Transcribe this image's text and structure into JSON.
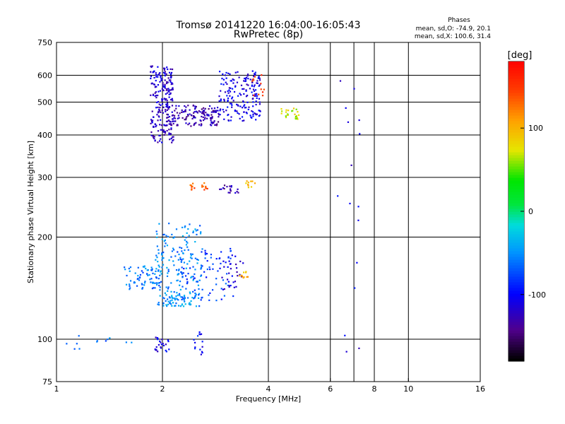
{
  "chart_data": {
    "type": "scatter",
    "title": "Tromsø 20141220 16:04:00-16:05:43",
    "subtitle": "RwPretec (8p)",
    "phase_stats": {
      "heading": "Phases",
      "line1": "mean, sd,O: -74.9, 20.1",
      "line2": "mean, sd,X: 100.6, 31.4"
    },
    "xlabel": "Frequency [MHz]",
    "ylabel": "Stationary phase Virtual Height [km]",
    "x_scale": "log",
    "y_scale": "log",
    "xlim": [
      1,
      16
    ],
    "ylim": [
      75,
      750
    ],
    "x_ticks": [
      1,
      2,
      4,
      6,
      8,
      10,
      16
    ],
    "y_ticks": [
      75,
      100,
      200,
      300,
      400,
      500,
      600,
      750
    ],
    "grid_x": [
      2,
      4,
      6,
      7,
      8,
      10
    ],
    "grid_y": [
      100,
      200,
      300,
      400,
      500,
      600
    ],
    "colorbar": {
      "label": "[deg]",
      "range": [
        -180,
        180
      ],
      "ticks": [
        -100,
        0,
        100
      ]
    },
    "point_clusters": [
      {
        "x": [
          1.85,
          2.15
        ],
        "y": [
          380,
          640
        ],
        "phase": -120,
        "n": 220
      },
      {
        "x": [
          2.05,
          2.9
        ],
        "y": [
          425,
          490
        ],
        "phase": -130,
        "n": 160
      },
      {
        "x": [
          2.9,
          3.8
        ],
        "y": [
          440,
          620
        ],
        "phase": -110,
        "n": 180
      },
      {
        "x": [
          3.6,
          3.9
        ],
        "y": [
          520,
          630
        ],
        "phase": 140,
        "n": 12
      },
      {
        "x": [
          4.3,
          4.9
        ],
        "y": [
          445,
          480
        ],
        "phase": 70,
        "n": 25
      },
      {
        "x": [
          1.55,
          2.0
        ],
        "y": [
          140,
          165
        ],
        "phase": -60,
        "n": 70
      },
      {
        "x": [
          1.9,
          2.6
        ],
        "y": [
          125,
          220
        ],
        "phase": -55,
        "n": 180
      },
      {
        "x": [
          2.2,
          3.2
        ],
        "y": [
          130,
          185
        ],
        "phase": -80,
        "n": 80
      },
      {
        "x": [
          2.0,
          2.5
        ],
        "y": [
          125,
          135
        ],
        "phase": -50,
        "n": 50
      },
      {
        "x": [
          2.9,
          3.4
        ],
        "y": [
          140,
          180
        ],
        "phase": -120,
        "n": 30
      },
      {
        "x": [
          3.3,
          3.5
        ],
        "y": [
          150,
          160
        ],
        "phase": 100,
        "n": 10
      },
      {
        "x": [
          2.4,
          2.7
        ],
        "y": [
          275,
          290
        ],
        "phase": 135,
        "n": 18
      },
      {
        "x": [
          2.9,
          3.3
        ],
        "y": [
          270,
          285
        ],
        "phase": -130,
        "n": 18
      },
      {
        "x": [
          3.4,
          3.7
        ],
        "y": [
          280,
          295
        ],
        "phase": 95,
        "n": 10
      },
      {
        "x": [
          1.9,
          2.1
        ],
        "y": [
          92,
          102
        ],
        "phase": -110,
        "n": 25
      },
      {
        "x": [
          2.4,
          2.6
        ],
        "y": [
          90,
          105
        ],
        "phase": -100,
        "n": 15
      },
      {
        "x": [
          1.05,
          1.7
        ],
        "y": [
          93,
          103
        ],
        "phase": -60,
        "n": 12
      },
      {
        "x": [
          6.2,
          7.4
        ],
        "y": [
          90,
          600
        ],
        "phase": -110,
        "n": 16
      }
    ]
  }
}
